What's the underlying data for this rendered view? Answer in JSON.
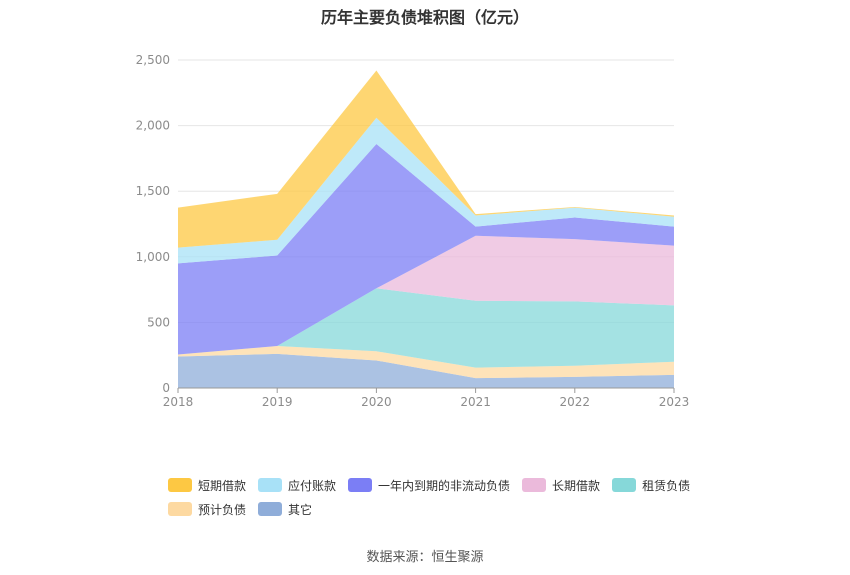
{
  "chart_data": {
    "type": "area",
    "stacked": true,
    "title": "历年主要负债堆积图（亿元）",
    "categories": [
      "2018",
      "2019",
      "2020",
      "2021",
      "2022",
      "2023"
    ],
    "ylim": [
      0,
      2500
    ],
    "yticks": [
      "0",
      "500",
      "1,000",
      "1,500",
      "2,000",
      "2,500"
    ],
    "grid": true,
    "legend_position": "bottom",
    "series": [
      {
        "name": "其它",
        "color": "#8fadd9",
        "values": [
          240,
          260,
          210,
          75,
          85,
          100
        ]
      },
      {
        "name": "预计负债",
        "color": "#fdd9a1",
        "values": [
          15,
          60,
          70,
          80,
          85,
          100
        ]
      },
      {
        "name": "租赁负债",
        "color": "#86d8d9",
        "values": [
          0,
          0,
          480,
          510,
          490,
          430
        ]
      },
      {
        "name": "长期借款",
        "color": "#ebbadb",
        "values": [
          0,
          0,
          0,
          495,
          475,
          455
        ]
      },
      {
        "name": "一年内到期的非流动负债",
        "color": "#7b7ef5",
        "values": [
          695,
          690,
          1100,
          70,
          165,
          145
        ]
      },
      {
        "name": "应付账款",
        "color": "#a8e1f7",
        "values": [
          120,
          120,
          200,
          85,
          75,
          75
        ]
      },
      {
        "name": "短期借款",
        "color": "#fdc843",
        "values": [
          305,
          350,
          360,
          10,
          5,
          10
        ]
      }
    ]
  },
  "legend_rows": [
    [
      {
        "label": "短期借款",
        "color": "#fdc843"
      },
      {
        "label": "应付账款",
        "color": "#a8e1f7"
      },
      {
        "label": "一年内到期的非流动负债",
        "color": "#7b7ef5"
      },
      {
        "label": "长期借款",
        "color": "#ebbadb"
      },
      {
        "label": "租赁负债",
        "color": "#86d8d9"
      }
    ],
    [
      {
        "label": "预计负债",
        "color": "#fdd9a1"
      },
      {
        "label": "其它",
        "color": "#8fadd9"
      }
    ]
  ],
  "source": "数据来源：恒生聚源"
}
